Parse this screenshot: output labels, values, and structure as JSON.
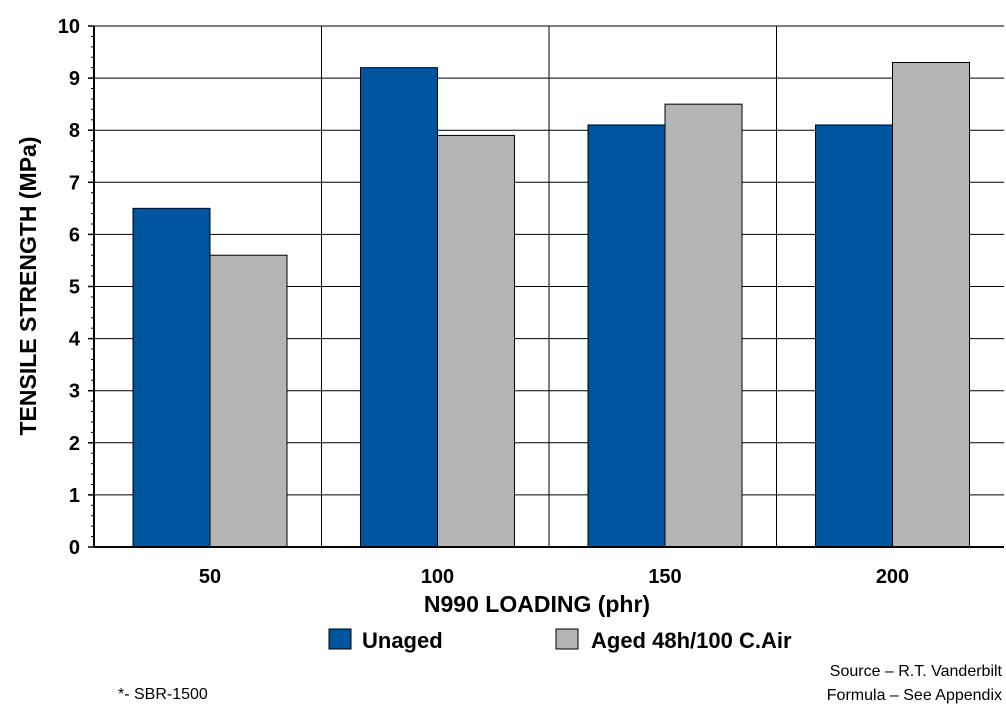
{
  "chart_data": {
    "type": "bar",
    "categories": [
      "50",
      "100",
      "150",
      "200"
    ],
    "series": [
      {
        "name": "Unaged",
        "values": [
          6.5,
          9.2,
          8.1,
          8.1
        ],
        "color": "#0055A0"
      },
      {
        "name": "Aged 48h/100 C.Air",
        "values": [
          5.6,
          7.9,
          8.5,
          9.3
        ],
        "color": "#B4B4B4"
      }
    ],
    "xlabel": "N990 LOADING (phr)",
    "ylabel": "TENSILE STRENGTH (MPa)",
    "ylim": [
      0,
      10
    ],
    "yticks": [
      "0",
      "1",
      "2",
      "3",
      "4",
      "5",
      "6",
      "7",
      "8",
      "9",
      "10"
    ],
    "grid": true,
    "legend_position": "bottom-center"
  },
  "notes": {
    "polymer": "*- SBR-1500",
    "source": "Source – R.T. Vanderbilt",
    "formula": "Formula – See Appendix"
  }
}
